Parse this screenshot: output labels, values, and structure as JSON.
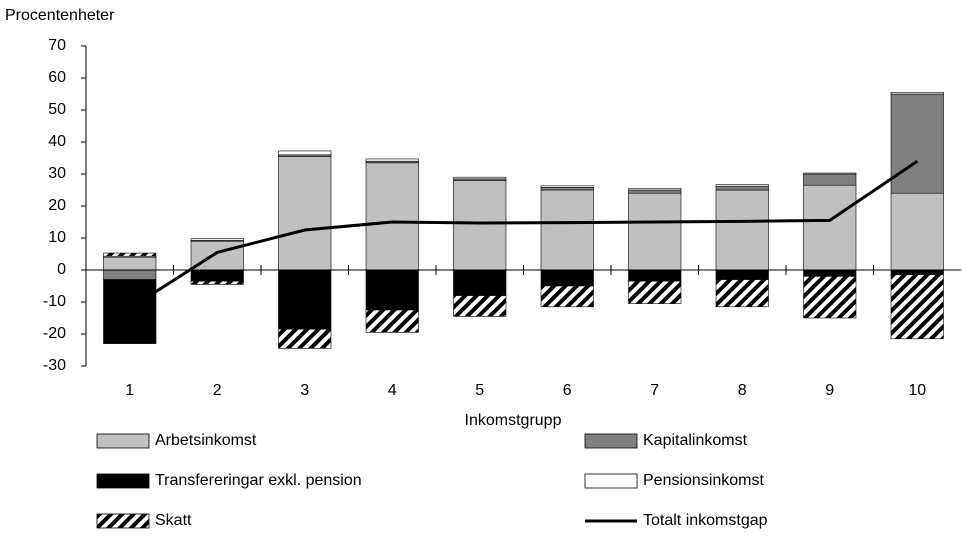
{
  "chart_data": {
    "type": "bar",
    "stacked": true,
    "y_label": "Procentenheter",
    "x_label": "Inkomstgrupp",
    "categories": [
      "1",
      "2",
      "3",
      "4",
      "5",
      "6",
      "7",
      "8",
      "9",
      "10"
    ],
    "series": [
      {
        "name": "Arbetsinkomst",
        "color": "#c0c0c0",
        "values": [
          4,
          9,
          35.5,
          33.5,
          28,
          25,
          24,
          25,
          26.5,
          24
        ]
      },
      {
        "name": "Kapitalinkomst",
        "color": "#808080",
        "values": [
          -3,
          0.3,
          0.5,
          0.5,
          0.5,
          0.8,
          1,
          1.2,
          3.5,
          31
        ]
      },
      {
        "name": "Transfereringar exkl. pension",
        "color": "#000000",
        "values": [
          -20,
          -3.5,
          -18.5,
          -12.5,
          -8,
          -5,
          -3.5,
          -3,
          -2,
          -1.5
        ]
      },
      {
        "name": "Pensionsinkomst",
        "color": "#ffffff",
        "values": [
          0.3,
          0.5,
          1.2,
          0.7,
          0.5,
          0.5,
          0.5,
          0.5,
          0.3,
          0.5
        ]
      },
      {
        "name": "Skatt",
        "color": "#000000",
        "pattern": "hatch",
        "values": [
          1,
          -1,
          -6,
          -7,
          -6.5,
          -6.5,
          -7,
          -8.5,
          -13,
          -20
        ]
      },
      {
        "name": "Totalt inkomstgap",
        "color": "#000000",
        "type": "line",
        "values": [
          -12,
          5.5,
          12.5,
          15,
          14.7,
          14.8,
          15,
          15.2,
          15.5,
          34
        ]
      }
    ],
    "ylim": [
      -30,
      70
    ],
    "yticks": [
      -30,
      -20,
      -10,
      0,
      10,
      20,
      30,
      40,
      50,
      60,
      70
    ]
  }
}
